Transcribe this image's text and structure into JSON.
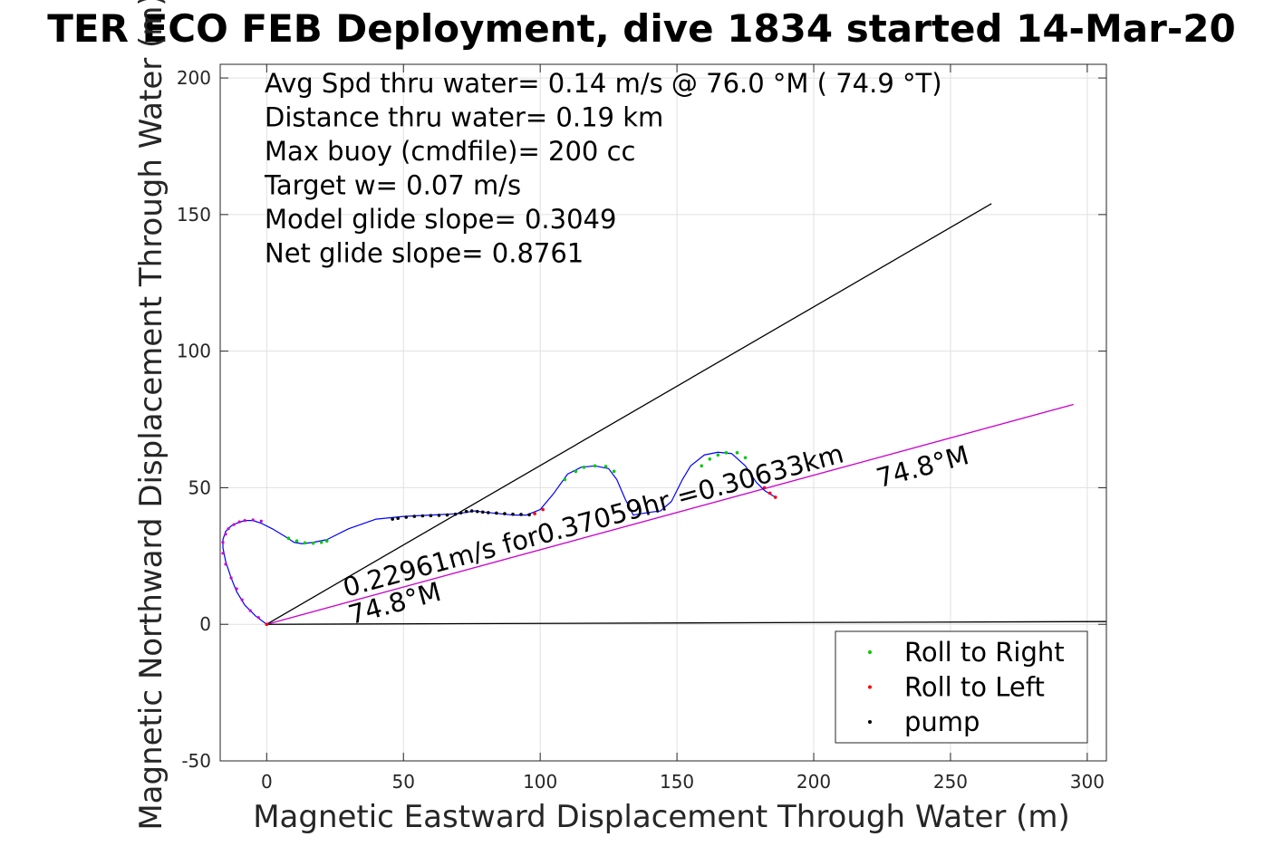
{
  "chart_data": {
    "type": "scatter",
    "title": "TER ECO FEB Deployment, dive 1834 started 14-Mar-20",
    "xlabel": "Magnetic Eastward Displacement Through Water (m)",
    "ylabel": "Magnetic Northward Displacement Through Water (m)",
    "xlim": [
      -17,
      307
    ],
    "ylim": [
      -50,
      205
    ],
    "xticks": [
      0,
      50,
      100,
      150,
      200,
      250,
      300
    ],
    "yticks": [
      -50,
      0,
      50,
      100,
      150,
      200
    ],
    "grid": true,
    "stats": [
      "Avg Spd thru water=  0.14 m/s @  76.0 °M ( 74.9 °T)",
      "Distance thru water=  0.19 km",
      "Max buoy (cmdfile)= 200 cc",
      "Target w= 0.07 m/s",
      "Model glide slope= 0.3049",
      "Net glide slope= 0.8761"
    ],
    "annotations": [
      {
        "text": "0.22961m/s for0.37059hr =0.30633km",
        "x": 29,
        "y": 10,
        "rotation_deg": -74.8
      },
      {
        "text": "74.8°M",
        "x": 31,
        "y": 0,
        "rotation_deg": -74.8
      },
      {
        "text": "74.8°M",
        "x": 224,
        "y": 50,
        "rotation_deg": -74.8
      }
    ],
    "legend": {
      "placement": "bottom-right",
      "entries": [
        {
          "label": "Roll to Right",
          "color": "#00cc00"
        },
        {
          "label": "Roll to Left",
          "color": "#ff0000"
        },
        {
          "label": "pump",
          "color": "#000000"
        }
      ]
    },
    "track": {
      "color": "#0000ff",
      "x": [
        0,
        -4,
        -8,
        -11,
        -13,
        -15,
        -16,
        -16,
        -15,
        -13,
        -11,
        -8,
        -5,
        -2,
        2,
        7,
        10,
        13,
        17,
        22,
        30,
        40,
        50,
        60,
        70,
        76,
        80,
        85,
        90,
        95,
        100,
        105,
        110,
        115,
        120,
        125,
        128,
        131,
        134,
        137,
        140,
        144,
        148,
        152,
        155,
        160,
        165,
        170,
        175,
        179,
        182,
        186
      ],
      "y": [
        0,
        3,
        7,
        12,
        17,
        23,
        28,
        31,
        34,
        36,
        37,
        38,
        38,
        37,
        35,
        32,
        30,
        29.5,
        30,
        31,
        35,
        38.5,
        39.5,
        40,
        40.5,
        41.5,
        41,
        40.5,
        40,
        40,
        42,
        48,
        55,
        57.5,
        58,
        57,
        53,
        46,
        40,
        40.5,
        41,
        41.5,
        45,
        53,
        58,
        62,
        63,
        62.5,
        58,
        52,
        49,
        46.5
      ]
    },
    "roll_right_points": {
      "color": "#00cc00",
      "x": [
        8,
        11,
        14,
        17,
        20,
        22,
        109,
        113,
        116,
        120,
        124,
        127,
        159,
        162,
        165,
        168,
        172,
        175
      ],
      "y": [
        31.5,
        30.5,
        29.8,
        29.7,
        30,
        30.5,
        53,
        56,
        57.5,
        58,
        57.8,
        56,
        58,
        60.5,
        62,
        62.8,
        62.8,
        61
      ]
    },
    "roll_left_points": {
      "color": "#ff0000",
      "x": [
        0,
        98,
        101,
        182,
        184,
        186
      ],
      "y": [
        0,
        40.5,
        42,
        50,
        48,
        46.5
      ]
    },
    "pump_points": {
      "color": "#000000",
      "x": [
        46,
        48,
        51,
        54,
        57,
        60,
        63,
        66,
        69,
        71,
        73,
        75,
        77,
        79,
        81,
        84,
        87,
        90,
        93,
        96
      ],
      "y": [
        38.5,
        38.8,
        39.2,
        39.5,
        39.7,
        39.8,
        39.9,
        40,
        40.3,
        40.8,
        41.3,
        41.5,
        41.3,
        41.1,
        40.9,
        40.7,
        40.5,
        40.3,
        40.2,
        40.1
      ]
    },
    "track_markers": {
      "color": "#cc00cc",
      "x": [
        0,
        -3,
        -6,
        -9,
        -11,
        -13,
        -15,
        -16,
        -16,
        -15,
        -14,
        -12,
        -10,
        -8,
        -5,
        -2,
        186
      ],
      "y": [
        0,
        2.5,
        5,
        9,
        13,
        17,
        22,
        26,
        30,
        33,
        35,
        36.5,
        37.5,
        38,
        38.2,
        37.8,
        46.5
      ]
    },
    "lines": [
      {
        "name": "",
        "color": "#000000",
        "x": [
          0,
          265
        ],
        "y": [
          0,
          154
        ]
      },
      {
        "name": "",
        "color": "#cc00cc",
        "x": [
          0,
          295
        ],
        "y": [
          0,
          80.5
        ]
      },
      {
        "name": "",
        "color": "#000000",
        "x": [
          0,
          307
        ],
        "y": [
          0,
          1
        ]
      }
    ]
  }
}
